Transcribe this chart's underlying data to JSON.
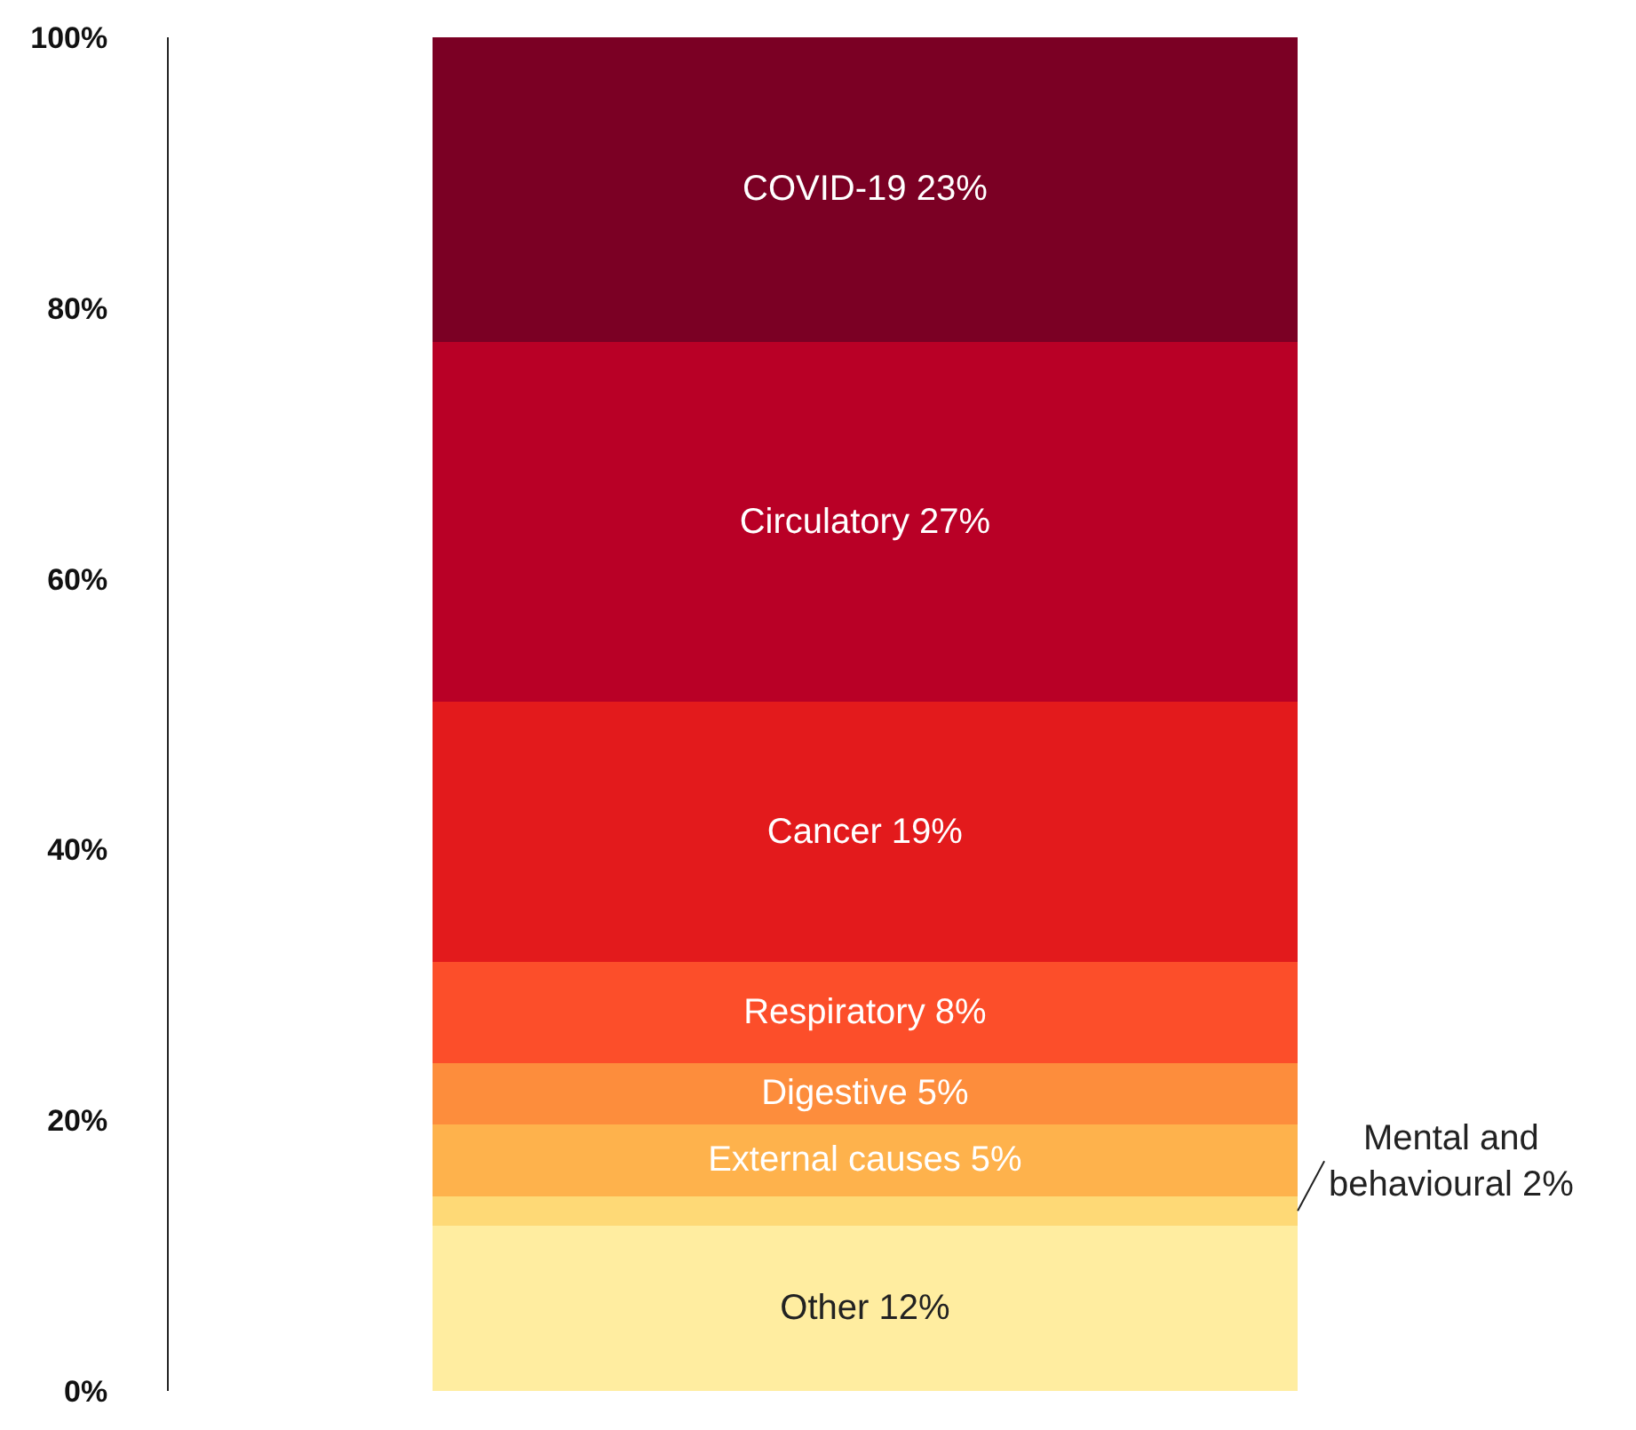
{
  "chart_data": {
    "type": "bar",
    "stacked": true,
    "categories": [
      null
    ],
    "series": [
      {
        "name": "Other",
        "color": "#ffeda0",
        "values": [
          12.2
        ],
        "value_labels": [
          "12%"
        ]
      },
      {
        "name": "Mental and behavioural",
        "color": "#fed976",
        "values": [
          2.2
        ],
        "value_labels": [
          "2%"
        ]
      },
      {
        "name": "External causes",
        "color": "#feb24c",
        "values": [
          5.3
        ],
        "value_labels": [
          "5%"
        ]
      },
      {
        "name": "Digestive",
        "color": "#fd8d3c",
        "values": [
          4.5
        ],
        "value_labels": [
          "5%"
        ]
      },
      {
        "name": "Respiratory",
        "color": "#fc4e2a",
        "values": [
          7.5
        ],
        "value_labels": [
          "8%"
        ]
      },
      {
        "name": "Cancer",
        "color": "#e31a1c",
        "values": [
          19.2
        ],
        "value_labels": [
          "19%"
        ]
      },
      {
        "name": "Circulatory",
        "color": "#b90026",
        "values": [
          26.6
        ],
        "value_labels": [
          "27%"
        ]
      },
      {
        "name": "COVID-19",
        "color": "#7b0024",
        "values": [
          22.5
        ],
        "value_labels": [
          "23%"
        ]
      }
    ],
    "ylim": [
      0,
      100
    ],
    "yticks": [
      {
        "value": 0,
        "label": "0%"
      },
      {
        "value": 20,
        "label": "20%"
      },
      {
        "value": 40,
        "label": "40%"
      },
      {
        "value": 60,
        "label": "60%"
      },
      {
        "value": 80,
        "label": "80%"
      },
      {
        "value": 100,
        "label": "100%"
      }
    ],
    "legend": false
  }
}
